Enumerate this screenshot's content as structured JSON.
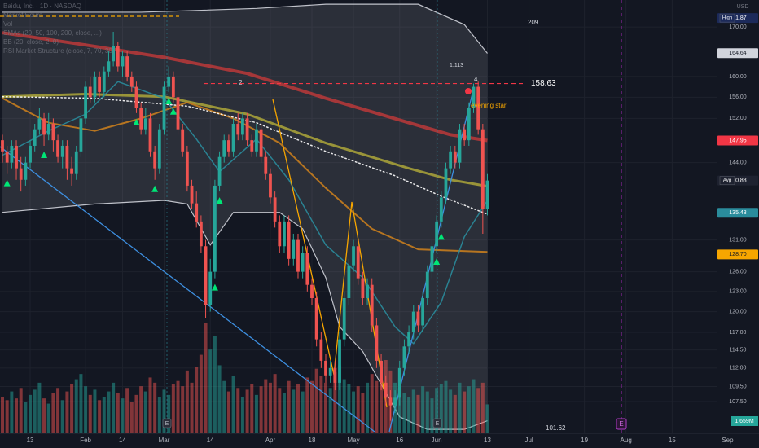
{
  "chart_data": {
    "type": "candlestick",
    "legend_lines": [
      "Baidu, Inc. · 1D · NASDAQ",
      "Market Hours",
      "Vol",
      "SMAs (20, 50, 100, 200, close, ...)",
      "BB (20, close, 2, 0)",
      "RSI Market Structure (close, 7, 70, 30)"
    ],
    "currency": "USD",
    "log_scale": true,
    "grid": true,
    "up_color": "#26a69a",
    "down_color": "#ef5350",
    "xlim": [
      -0.53,
      163.8
    ],
    "ylim": [
      103.4,
      175.7
    ],
    "xticks": [
      {
        "value": 6,
        "label": "13"
      },
      {
        "value": 18,
        "label": "Feb"
      },
      {
        "value": 26,
        "label": "14"
      },
      {
        "value": 35,
        "label": "Mar"
      },
      {
        "value": 45,
        "label": "14"
      },
      {
        "value": 58,
        "label": "Apr"
      },
      {
        "value": 67,
        "label": "18"
      },
      {
        "value": 76,
        "label": "May"
      },
      {
        "value": 86,
        "label": "16"
      },
      {
        "value": 94,
        "label": "Jun"
      },
      {
        "value": 105,
        "label": "13"
      },
      {
        "value": 114,
        "label": "Jul"
      },
      {
        "value": 126,
        "label": "19"
      },
      {
        "value": 135,
        "label": "Aug"
      },
      {
        "value": 145,
        "label": "15"
      },
      {
        "value": 157,
        "label": "Sep"
      }
    ],
    "yticks": [
      {
        "value": 170,
        "label": "170.00"
      },
      {
        "value": 160,
        "label": "160.00"
      },
      {
        "value": 156,
        "label": "156.00"
      },
      {
        "value": 152,
        "label": "152.00"
      },
      {
        "value": 144,
        "label": "144.00"
      },
      {
        "value": 131,
        "label": "131.00"
      },
      {
        "value": 126,
        "label": "126.00"
      },
      {
        "value": 123,
        "label": "123.00"
      },
      {
        "value": 120,
        "label": "120.00"
      },
      {
        "value": 117,
        "label": "117.00"
      },
      {
        "value": 114.5,
        "label": "114.50"
      },
      {
        "value": 112,
        "label": "112.00"
      },
      {
        "value": 109.5,
        "label": "109.50"
      },
      {
        "value": 107.5,
        "label": "107.50"
      }
    ],
    "ohlc": [
      [
        148,
        149,
        144,
        146
      ],
      [
        146,
        147,
        142,
        144
      ],
      [
        144,
        148,
        143,
        147
      ],
      [
        147,
        148,
        141,
        143
      ],
      [
        143,
        145,
        139,
        141
      ],
      [
        141,
        145,
        140,
        144
      ],
      [
        144,
        148,
        143,
        147
      ],
      [
        147,
        151,
        146,
        150
      ],
      [
        150,
        154,
        149,
        152
      ],
      [
        152,
        153,
        147,
        149
      ],
      [
        149,
        153,
        148,
        151
      ],
      [
        151,
        152,
        146,
        148
      ],
      [
        148,
        149,
        144,
        145
      ],
      [
        145,
        148,
        143,
        147
      ],
      [
        147,
        148,
        141,
        143
      ],
      [
        143,
        145,
        140,
        142
      ],
      [
        142,
        147,
        141,
        146
      ],
      [
        146,
        153,
        145,
        152
      ],
      [
        152,
        159,
        151,
        158
      ],
      [
        158,
        160,
        155,
        156
      ],
      [
        156,
        161,
        155,
        160
      ],
      [
        160,
        161,
        156,
        157
      ],
      [
        157,
        162,
        156,
        161
      ],
      [
        161,
        165,
        160,
        163
      ],
      [
        163,
        169,
        162,
        166
      ],
      [
        166,
        167,
        161,
        162
      ],
      [
        162,
        165,
        160,
        164
      ],
      [
        164,
        165,
        159,
        160
      ],
      [
        160,
        161,
        157,
        158
      ],
      [
        158,
        159,
        153,
        154
      ],
      [
        154,
        155,
        149,
        150
      ],
      [
        150,
        154,
        149,
        152
      ],
      [
        152,
        153,
        145,
        146
      ],
      [
        146,
        147,
        141,
        143
      ],
      [
        143,
        151,
        142,
        150
      ],
      [
        150,
        159,
        149,
        158
      ],
      [
        158,
        162,
        157,
        160
      ],
      [
        160,
        161,
        155,
        156
      ],
      [
        156,
        157,
        149,
        150
      ],
      [
        150,
        151,
        145,
        146
      ],
      [
        146,
        147,
        139,
        140
      ],
      [
        140,
        141,
        136,
        137
      ],
      [
        137,
        139,
        133,
        134
      ],
      [
        134,
        135,
        129,
        130
      ],
      [
        130,
        131,
        119,
        121
      ],
      [
        121,
        128,
        120,
        126
      ],
      [
        126,
        141,
        125,
        140
      ],
      [
        140,
        146,
        139,
        145
      ],
      [
        145,
        149,
        144,
        148
      ],
      [
        148,
        149,
        145,
        146
      ],
      [
        146,
        152,
        145,
        151
      ],
      [
        151,
        153,
        148,
        149
      ],
      [
        149,
        153,
        148,
        152
      ],
      [
        152,
        153,
        147,
        148
      ],
      [
        148,
        149,
        145,
        146
      ],
      [
        146,
        151,
        145,
        150
      ],
      [
        150,
        151,
        144,
        145
      ],
      [
        145,
        146,
        141,
        142
      ],
      [
        142,
        143,
        137,
        138
      ],
      [
        138,
        139,
        133,
        134
      ],
      [
        134,
        135,
        129,
        130
      ],
      [
        130,
        135,
        129,
        134
      ],
      [
        134,
        135,
        127,
        128
      ],
      [
        128,
        132,
        127,
        131
      ],
      [
        131,
        132,
        125,
        126
      ],
      [
        126,
        130,
        125,
        129
      ],
      [
        129,
        130,
        123,
        124
      ],
      [
        124,
        125,
        121,
        122
      ],
      [
        122,
        123,
        115,
        116
      ],
      [
        116,
        117,
        112,
        113
      ],
      [
        113,
        114,
        110,
        111
      ],
      [
        111,
        113,
        110,
        112
      ],
      [
        112,
        113,
        109,
        110
      ],
      [
        110,
        117,
        109,
        116
      ],
      [
        116,
        123,
        115,
        122
      ],
      [
        122,
        128,
        121,
        127
      ],
      [
        127,
        131,
        126,
        130
      ],
      [
        130,
        131,
        124,
        125
      ],
      [
        125,
        126,
        121,
        122
      ],
      [
        122,
        125,
        121,
        124
      ],
      [
        124,
        125,
        117,
        118
      ],
      [
        118,
        119,
        112,
        113
      ],
      [
        113,
        114,
        109,
        110
      ],
      [
        110,
        111,
        107,
        108
      ],
      [
        108,
        109,
        105,
        107
      ],
      [
        107,
        109,
        106,
        108
      ],
      [
        108,
        113,
        107,
        112
      ],
      [
        112,
        116,
        111,
        115
      ],
      [
        115,
        118,
        114,
        117
      ],
      [
        117,
        121,
        116,
        120
      ],
      [
        120,
        121,
        117,
        118
      ],
      [
        118,
        123,
        117,
        122
      ],
      [
        122,
        127,
        121,
        126
      ],
      [
        126,
        131,
        125,
        130
      ],
      [
        130,
        135,
        129,
        134
      ],
      [
        134,
        139,
        133,
        138
      ],
      [
        138,
        144,
        137,
        143
      ],
      [
        143,
        147,
        142,
        146
      ],
      [
        146,
        147,
        143,
        144
      ],
      [
        144,
        151,
        143,
        150
      ],
      [
        150,
        151,
        147,
        148
      ],
      [
        148,
        155,
        147,
        154
      ],
      [
        154,
        158.63,
        153,
        158
      ],
      [
        158,
        159,
        149,
        150
      ],
      [
        150,
        151,
        132,
        136
      ],
      [
        136,
        142,
        135,
        140.88
      ]
    ],
    "volume": [
      2.1,
      1.9,
      2.4,
      2.0,
      2.6,
      1.8,
      2.2,
      2.5,
      2.9,
      2.0,
      1.7,
      2.3,
      2.6,
      1.9,
      2.4,
      2.8,
      3.1,
      3.4,
      2.7,
      2.2,
      2.5,
      1.9,
      2.1,
      2.4,
      2.9,
      2.3,
      2.0,
      2.6,
      1.8,
      2.2,
      2.7,
      2.4,
      3.2,
      2.9,
      2.1,
      2.5,
      2.2,
      2.8,
      3.0,
      2.7,
      3.6,
      2.9,
      3.8,
      4.5,
      6.3,
      4.8,
      5.6,
      3.9,
      3.0,
      2.4,
      3.3,
      2.6,
      2.1,
      2.5,
      2.8,
      2.2,
      2.7,
      3.1,
      2.9,
      3.4,
      2.6,
      2.3,
      3.0,
      2.5,
      2.8,
      2.4,
      3.2,
      3.0,
      3.7,
      3.3,
      2.9,
      2.6,
      3.5,
      3.9,
      3.1,
      2.8,
      2.4,
      2.7,
      2.3,
      2.9,
      3.4,
      3.0,
      3.8,
      4.2,
      3.6,
      2.9,
      2.6,
      2.3,
      2.1,
      2.5,
      2.2,
      2.7,
      2.4,
      2.0,
      2.6,
      2.8,
      3.0,
      2.5,
      2.2,
      2.9,
      2.4,
      2.7,
      3.1,
      2.6,
      2.9,
      1.659
    ],
    "volume_label": {
      "value": 1.659,
      "label": "1.659M"
    },
    "lines": [
      {
        "color": "#b2383a",
        "width": 4,
        "style": "solid",
        "x": [
          0,
          18,
          35,
          53,
          70,
          88,
          97,
          105
        ],
        "values": [
          168.8,
          166.3,
          163.8,
          160.6,
          155.8,
          151.2,
          149.0,
          147.95
        ]
      },
      {
        "color": "#a5a03a",
        "width": 3,
        "style": "solid",
        "x": [
          0,
          18,
          35,
          53,
          70,
          88,
          97,
          105
        ],
        "values": [
          156.1,
          156.6,
          156.1,
          152.8,
          147.5,
          143.0,
          141.0,
          139.9
        ]
      },
      {
        "color": "#c77d1e",
        "width": 2,
        "style": "solid",
        "x": [
          0,
          10,
          20,
          30,
          40,
          50,
          60,
          70,
          80,
          90,
          105
        ],
        "values": [
          155.8,
          151.2,
          149.7,
          152.0,
          155.0,
          152.0,
          147.5,
          139.6,
          132.8,
          129.5,
          129.1
        ]
      },
      {
        "color": "#2a8c9c",
        "width": 1.5,
        "style": "solid",
        "x": [
          0,
          10,
          18,
          25,
          35,
          42,
          47,
          55,
          62,
          70,
          78,
          85,
          89,
          95,
          100,
          105
        ],
        "values": [
          145.3,
          149.7,
          152.8,
          159.0,
          155.8,
          148.2,
          142.4,
          148.2,
          141.0,
          130.2,
          125.1,
          117.8,
          115.4,
          121.4,
          131.5,
          137.5
        ]
      },
      {
        "color": "#ffffff",
        "width": 1.5,
        "style": "dotted",
        "x": [
          0,
          20,
          40,
          55,
          70,
          85,
          95,
          105
        ],
        "values": [
          156.1,
          155.8,
          154.3,
          151.2,
          146.0,
          141.7,
          138.2,
          135.2
        ]
      }
    ],
    "bands": {
      "color": "#d1d4dc",
      "upper": {
        "x": [
          0,
          30,
          55,
          70,
          90,
          100,
          105
        ],
        "values": [
          173.1,
          173.1,
          173.9,
          174.8,
          174.8,
          170.5,
          164.6
        ]
      },
      "lower": {
        "x": [
          0,
          20,
          35,
          40,
          45,
          50,
          60,
          65,
          70,
          73,
          78,
          82,
          86,
          92,
          100,
          105
        ],
        "values": [
          135.5,
          136.9,
          137.5,
          136.9,
          130.2,
          135.5,
          135.5,
          132.8,
          125.1,
          117.8,
          114.3,
          109.8,
          105.5,
          103.9,
          103.9,
          105.0
        ]
      }
    },
    "signals": [
      1,
      9,
      29,
      33,
      36,
      37,
      46,
      47,
      94,
      95
    ],
    "price_labels": [
      {
        "value": 171.87,
        "tag": "High",
        "bg": "#1c2a5a",
        "fg": "#ffffff"
      },
      {
        "value": 164.64,
        "bg": "#d1d4dc",
        "fg": "#131722"
      },
      {
        "value": 147.95,
        "bg": "#f23645",
        "fg": "#ffffff"
      },
      {
        "value": 140.88,
        "tag": "Avg",
        "bg": "#1e2230",
        "fg": "#ffffff"
      },
      {
        "value": 135.43,
        "bg": "#2a8c9c",
        "fg": "#ffffff"
      },
      {
        "value": 128.7,
        "label": "128.70",
        "bg": "#f7a600",
        "fg": "#131722"
      }
    ],
    "annotations": [
      "209",
      "1.113",
      "2",
      "4",
      "evening star"
    ],
    "resistance": 158.63,
    "low_level": 101.62,
    "earnings_marker": "E"
  }
}
